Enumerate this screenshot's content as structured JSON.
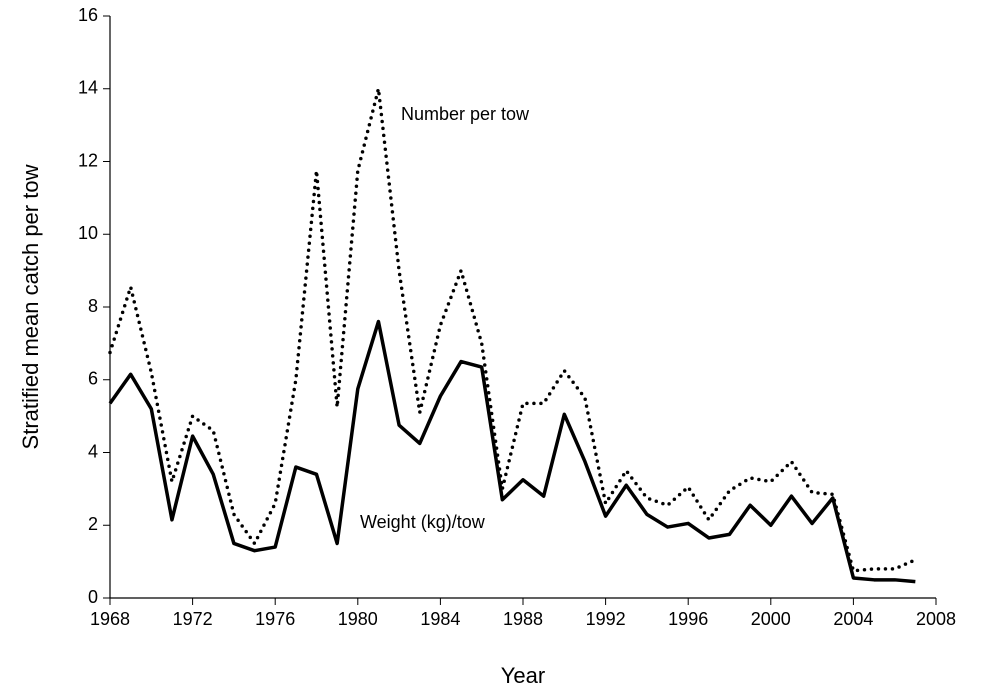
{
  "chart_data": {
    "type": "line",
    "x_label": "Year",
    "y_label": "Stratified mean catch per tow",
    "x": [
      1968,
      1969,
      1970,
      1971,
      1972,
      1973,
      1974,
      1975,
      1976,
      1977,
      1978,
      1979,
      1980,
      1981,
      1982,
      1983,
      1984,
      1985,
      1986,
      1987,
      1988,
      1989,
      1990,
      1991,
      1992,
      1993,
      1994,
      1995,
      1996,
      1997,
      1998,
      1999,
      2000,
      2001,
      2002,
      2003,
      2004,
      2005,
      2006,
      2007
    ],
    "series": [
      {
        "name": "Number per tow",
        "color": "#000000",
        "style": "dotted",
        "values": [
          6.75,
          8.55,
          6.2,
          3.2,
          5.0,
          4.6,
          2.3,
          1.5,
          2.6,
          6.0,
          11.75,
          5.25,
          11.75,
          14.0,
          9.0,
          5.1,
          7.5,
          9.0,
          7.0,
          3.0,
          5.35,
          5.35,
          6.25,
          5.5,
          2.6,
          3.5,
          2.75,
          2.55,
          3.05,
          2.15,
          2.95,
          3.3,
          3.2,
          3.75,
          2.9,
          2.85,
          0.75,
          0.8,
          0.8,
          1.05
        ]
      },
      {
        "name": "Weight (kg)/tow",
        "color": "#000000",
        "style": "solid",
        "values": [
          5.35,
          6.15,
          5.2,
          2.15,
          4.45,
          3.4,
          1.5,
          1.3,
          1.4,
          3.6,
          3.4,
          1.5,
          5.75,
          7.6,
          4.75,
          4.25,
          5.55,
          6.5,
          6.35,
          2.7,
          3.25,
          2.8,
          5.05,
          3.75,
          2.25,
          3.1,
          2.3,
          1.95,
          2.05,
          1.65,
          1.75,
          2.55,
          2.0,
          2.8,
          2.05,
          2.75,
          0.55,
          0.5,
          0.5,
          0.45
        ]
      }
    ],
    "xlim": [
      1968,
      2008
    ],
    "xticks": [
      1968,
      1972,
      1976,
      1980,
      1984,
      1988,
      1992,
      1996,
      2000,
      2004,
      2008
    ],
    "ylim": [
      0,
      16
    ],
    "yticks": [
      0,
      2,
      4,
      6,
      8,
      10,
      12,
      14,
      16
    ],
    "grid": false
  }
}
